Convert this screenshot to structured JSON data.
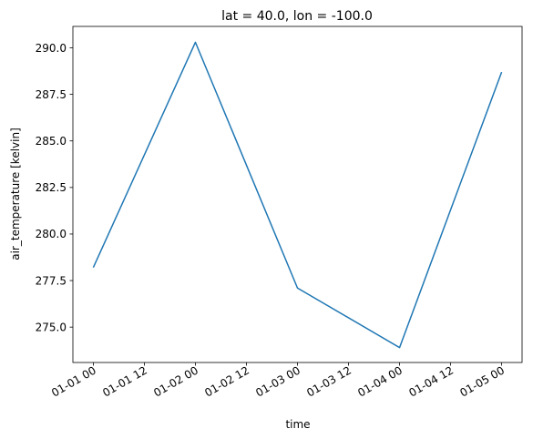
{
  "chart_data": {
    "type": "line",
    "title": "lat = 40.0, lon = -100.0",
    "xlabel": "time",
    "ylabel": "air_temperature [kelvin]",
    "x": [
      "2013-01-01 00:00",
      "2013-01-02 00:00",
      "2013-01-03 00:00",
      "2013-01-04 00:00",
      "2013-01-05 00:00"
    ],
    "series": [
      {
        "values": [
          278.2,
          290.3,
          277.1,
          273.9,
          288.7
        ],
        "color": "#1f77b4"
      }
    ],
    "x_ticks": [
      "01-01 00",
      "01-01 12",
      "01-02 00",
      "01-02 12",
      "01-03 00",
      "01-03 12",
      "01-04 00",
      "01-04 12",
      "01-05 00"
    ],
    "y_ticks": [
      "275.0",
      "277.5",
      "280.0",
      "282.5",
      "285.0",
      "287.5",
      "290.0"
    ],
    "ylim": [
      273.1,
      291.15
    ],
    "grid": false,
    "legend": "none"
  }
}
